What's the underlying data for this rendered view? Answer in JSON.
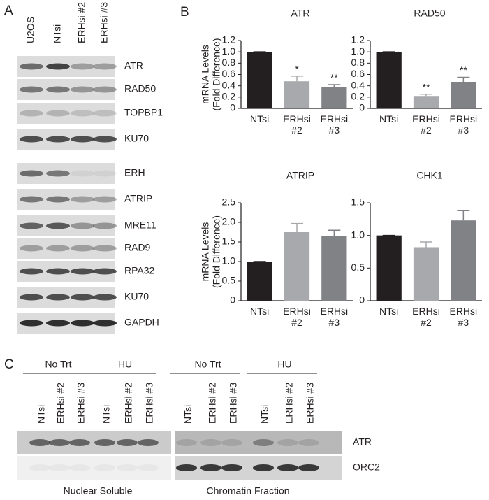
{
  "panel_a": {
    "label": "A",
    "lanes": [
      "U2OS",
      "NTsi",
      "ERHsi #2",
      "ERHsi #3"
    ],
    "bands": [
      "ATR",
      "RAD50",
      "TOPBP1",
      "KU70",
      "ERH",
      "ATRIP",
      "MRE11",
      "RAD9",
      "RPA32",
      "KU70",
      "GAPDH"
    ]
  },
  "panel_b_label": "B",
  "chart_data": [
    {
      "type": "bar",
      "title": "ATR",
      "y_label": [
        "mRNA Levels",
        "(Fold Difference)"
      ],
      "categories": [
        "NTsi",
        "ERHsi #2",
        "ERHsi #3"
      ],
      "values": [
        1.0,
        0.48,
        0.38
      ],
      "errors": [
        0,
        0.09,
        0.04
      ],
      "annotations": [
        null,
        "*",
        "**"
      ],
      "colors": [
        "#231f20",
        "#a7a9ac",
        "#808285"
      ],
      "ylim": [
        0,
        1.2
      ],
      "yticks": [
        0,
        0.2,
        0.4,
        0.6,
        0.8,
        {
          "value": 1,
          "label": "1.0"
        },
        1.2
      ]
    },
    {
      "type": "bar",
      "title": "RAD50",
      "categories": [
        "NTsi",
        "ERHsi #2",
        "ERHsi #3"
      ],
      "values": [
        1.0,
        0.22,
        0.47
      ],
      "errors": [
        0,
        0.03,
        0.08
      ],
      "annotations": [
        null,
        "**",
        "**"
      ],
      "colors": [
        "#231f20",
        "#a7a9ac",
        "#808285"
      ],
      "ylim": [
        0,
        1.2
      ],
      "yticks": [
        0,
        0.2,
        0.4,
        0.6,
        0.8,
        {
          "value": 1,
          "label": "1.0"
        },
        1.2
      ]
    },
    {
      "type": "bar",
      "title": "ATRIP",
      "y_label": [
        "mRNA Levels",
        "(Fold Difference)"
      ],
      "categories": [
        "NTsi",
        "ERHsi #2",
        "ERHsi #3"
      ],
      "values": [
        1.0,
        1.75,
        1.65
      ],
      "errors": [
        0,
        0.22,
        0.15
      ],
      "colors": [
        "#231f20",
        "#a7a9ac",
        "#808285"
      ],
      "ylim": [
        0,
        2.5
      ],
      "yticks": [
        0,
        0.5,
        {
          "value": 1,
          "label": "1.0"
        },
        1.5,
        {
          "value": 2,
          "label": "2.0"
        },
        2.5
      ]
    },
    {
      "type": "bar",
      "title": "CHK1",
      "categories": [
        "NTsi",
        "ERHsi #2",
        "ERHsi #3"
      ],
      "values": [
        1.0,
        0.82,
        1.23
      ],
      "errors": [
        0,
        0.08,
        0.15
      ],
      "colors": [
        "#231f20",
        "#a7a9ac",
        "#808285"
      ],
      "ylim": [
        0,
        1.5
      ],
      "yticks": [
        0,
        0.5,
        {
          "value": 1,
          "label": "1.0"
        },
        1.5
      ]
    }
  ],
  "panel_c": {
    "label": "C",
    "groups": [
      {
        "name": "No Trt",
        "lanes": [
          "NTsi",
          "ERHsi #2",
          "ERHsi #3"
        ]
      },
      {
        "name": "HU",
        "lanes": [
          "NTsi",
          "ERHsi #2",
          "ERHsi #3"
        ]
      },
      {
        "name": "No Trt",
        "lanes": [
          "NTsi",
          "ERHsi #2",
          "ERHsi #3"
        ]
      },
      {
        "name": "HU",
        "lanes": [
          "NTsi",
          "ERHsi #2",
          "ERHsi #3"
        ]
      }
    ],
    "rows": [
      "ATR",
      "ORC2"
    ],
    "fractions": [
      "Nuclear Soluble",
      "Chromatin Fraction"
    ]
  }
}
